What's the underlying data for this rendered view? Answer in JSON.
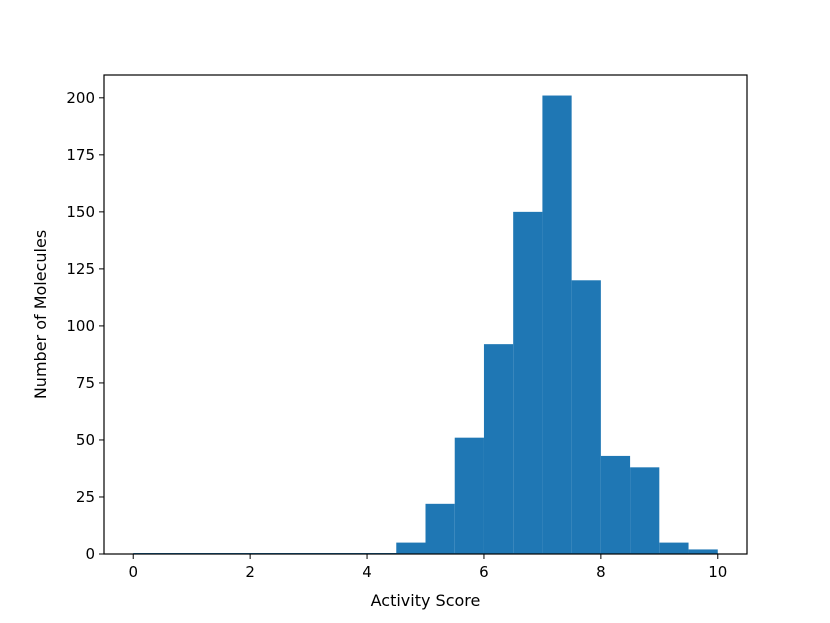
{
  "chart_data": {
    "type": "bar",
    "title": "",
    "xlabel": "Activity Score",
    "ylabel": "Number of Molecules",
    "xlim": [
      -0.5,
      10.5
    ],
    "ylim": [
      0,
      210
    ],
    "xticks": [
      0,
      2,
      4,
      6,
      8,
      10
    ],
    "yticks": [
      0,
      25,
      50,
      75,
      100,
      125,
      150,
      175,
      200
    ],
    "grid": false,
    "bar_color": "#1f77b4",
    "bins": [
      {
        "x0": 0.0,
        "x1": 0.5,
        "count": 0
      },
      {
        "x0": 0.5,
        "x1": 1.0,
        "count": 0
      },
      {
        "x0": 1.0,
        "x1": 1.5,
        "count": 0
      },
      {
        "x0": 1.5,
        "x1": 2.0,
        "count": 0
      },
      {
        "x0": 2.0,
        "x1": 2.5,
        "count": 0
      },
      {
        "x0": 2.5,
        "x1": 3.0,
        "count": 0
      },
      {
        "x0": 3.0,
        "x1": 3.5,
        "count": 0
      },
      {
        "x0": 3.5,
        "x1": 4.0,
        "count": 0
      },
      {
        "x0": 4.0,
        "x1": 4.5,
        "count": 0
      },
      {
        "x0": 4.5,
        "x1": 5.0,
        "count": 5
      },
      {
        "x0": 5.0,
        "x1": 5.5,
        "count": 22
      },
      {
        "x0": 5.5,
        "x1": 6.0,
        "count": 51
      },
      {
        "x0": 6.0,
        "x1": 6.5,
        "count": 92
      },
      {
        "x0": 6.5,
        "x1": 7.0,
        "count": 150
      },
      {
        "x0": 7.0,
        "x1": 7.5,
        "count": 201
      },
      {
        "x0": 7.5,
        "x1": 8.0,
        "count": 120
      },
      {
        "x0": 8.0,
        "x1": 8.5,
        "count": 43
      },
      {
        "x0": 8.5,
        "x1": 9.0,
        "count": 38
      },
      {
        "x0": 9.0,
        "x1": 9.5,
        "count": 5
      },
      {
        "x0": 9.5,
        "x1": 10.0,
        "count": 2
      }
    ]
  }
}
